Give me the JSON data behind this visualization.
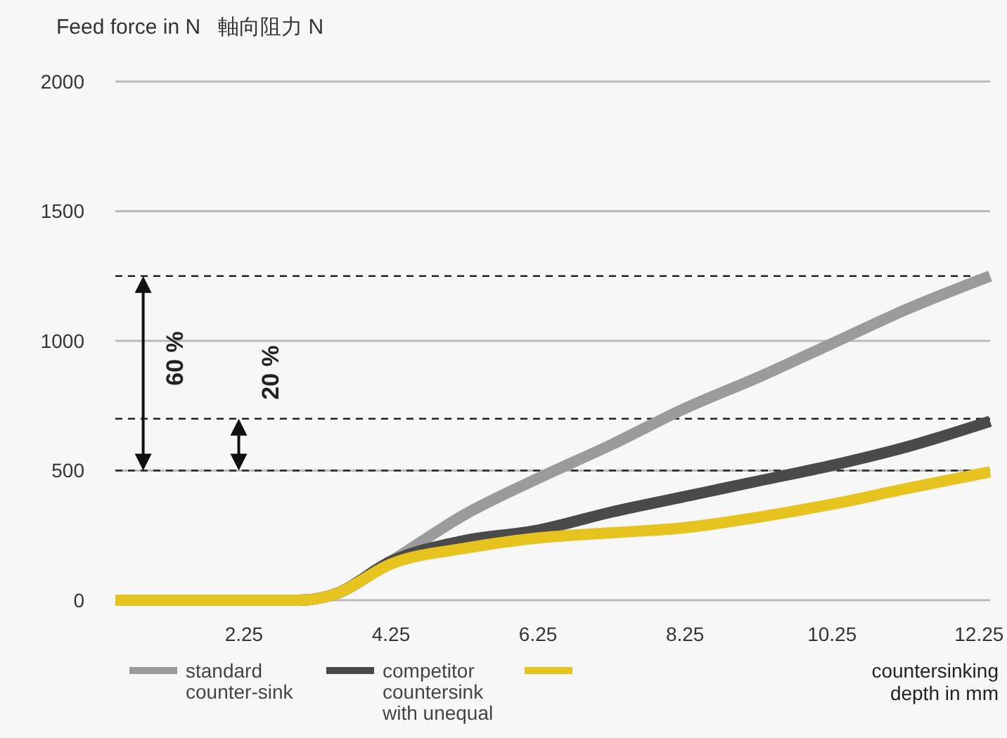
{
  "chart_data": {
    "type": "line",
    "ylabel": "Feed force in N   軸向阻力 N",
    "xlabel": "countersinking depth in mm",
    "xlim": [
      0.5,
      12.4
    ],
    "xticks": [
      2.25,
      4.25,
      6.25,
      8.25,
      10.25,
      12.25
    ],
    "ylim": [
      0,
      2000
    ],
    "yticks": [
      0,
      500,
      1000,
      1500,
      2000
    ],
    "grid": "y",
    "legend": "bottom",
    "line_style": "solid",
    "marker": "none",
    "series": [
      {
        "name": "standard counter-sink",
        "color": "#9b9b9b",
        "x": [
          0.5,
          3.0,
          3.5,
          4.25,
          5.25,
          6.25,
          7.25,
          8.25,
          9.25,
          10.25,
          11.25,
          12.4
        ],
        "values": [
          0,
          0,
          25,
          150,
          330,
          470,
          600,
          740,
          860,
          990,
          1120,
          1250
        ]
      },
      {
        "name": "competitor countersink with unequal",
        "color": "#4a4a4a",
        "x": [
          0.5,
          3.0,
          3.5,
          4.25,
          5.25,
          6.25,
          7.25,
          8.25,
          9.25,
          10.25,
          11.25,
          12.4
        ],
        "values": [
          0,
          0,
          25,
          150,
          230,
          270,
          340,
          400,
          460,
          520,
          590,
          690
        ]
      },
      {
        "color": "#e6c31e",
        "x": [
          0.5,
          3.0,
          3.5,
          4.25,
          5.25,
          6.25,
          7.25,
          8.25,
          9.25,
          10.25,
          11.25,
          12.4
        ],
        "values": [
          0,
          0,
          25,
          140,
          200,
          240,
          260,
          280,
          320,
          370,
          430,
          495
        ]
      }
    ],
    "ref_lines": [
      {
        "axis": "y",
        "value": 1250,
        "line_style": "dashed",
        "color": "#222222"
      },
      {
        "axis": "y",
        "value": 700,
        "line_style": "dashed",
        "color": "#222222"
      },
      {
        "axis": "y",
        "value": 500,
        "line_style": "dashed",
        "color": "#222222"
      }
    ],
    "annotations": [
      "60 %",
      "20 %"
    ]
  }
}
